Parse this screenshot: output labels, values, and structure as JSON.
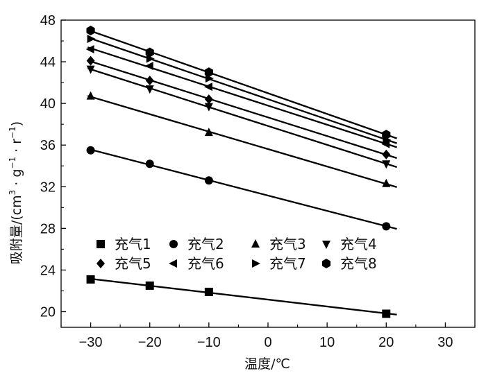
{
  "chart_data": {
    "type": "scatter",
    "xlabel": "温度/℃",
    "ylabel": "吸附量/(cm³·g⁻¹·r⁻¹)",
    "ylabel_parts": {
      "main": "吸附量/(cm",
      "sup1": "3",
      "mid1": " · g",
      "sup2": "−1",
      "mid2": " · r",
      "sup3": "−1",
      "end": ")"
    },
    "xlim": [
      -35,
      35
    ],
    "ylim": [
      18.5,
      48
    ],
    "xticks": [
      -30,
      -20,
      -10,
      0,
      10,
      20,
      30
    ],
    "xtick_labels": [
      "−30",
      "−20",
      "−10",
      "0",
      "10",
      "20",
      "30"
    ],
    "yticks": [
      20,
      24,
      28,
      32,
      36,
      40,
      44,
      48
    ],
    "ytick_labels": [
      "20",
      "24",
      "28",
      "32",
      "36",
      "40",
      "44",
      "48"
    ],
    "grid": false,
    "legend_position": "lower-left",
    "legend_columns": 4,
    "fit_lines": true,
    "x": [
      -30,
      -20,
      -10,
      20
    ],
    "series": [
      {
        "name": "充气1",
        "marker": "square",
        "values": [
          23.1,
          22.5,
          21.9,
          19.8
        ]
      },
      {
        "name": "充气2",
        "marker": "circle",
        "values": [
          35.5,
          34.2,
          32.6,
          28.2
        ]
      },
      {
        "name": "充气3",
        "marker": "triangle-up",
        "values": [
          40.7,
          null,
          37.2,
          32.3
        ]
      },
      {
        "name": "充气4",
        "marker": "triangle-down",
        "values": [
          43.3,
          41.4,
          39.7,
          34.2
        ]
      },
      {
        "name": "充气5",
        "marker": "diamond",
        "values": [
          44.1,
          42.2,
          40.4,
          35.1
        ]
      },
      {
        "name": "充气6",
        "marker": "triangle-left",
        "values": [
          45.2,
          43.6,
          41.6,
          36.1
        ]
      },
      {
        "name": "充气7",
        "marker": "triangle-right",
        "values": [
          46.2,
          44.3,
          42.4,
          36.5
        ]
      },
      {
        "name": "充气8",
        "marker": "hexagon",
        "values": [
          47.0,
          44.9,
          43.0,
          37.0
        ]
      }
    ]
  }
}
